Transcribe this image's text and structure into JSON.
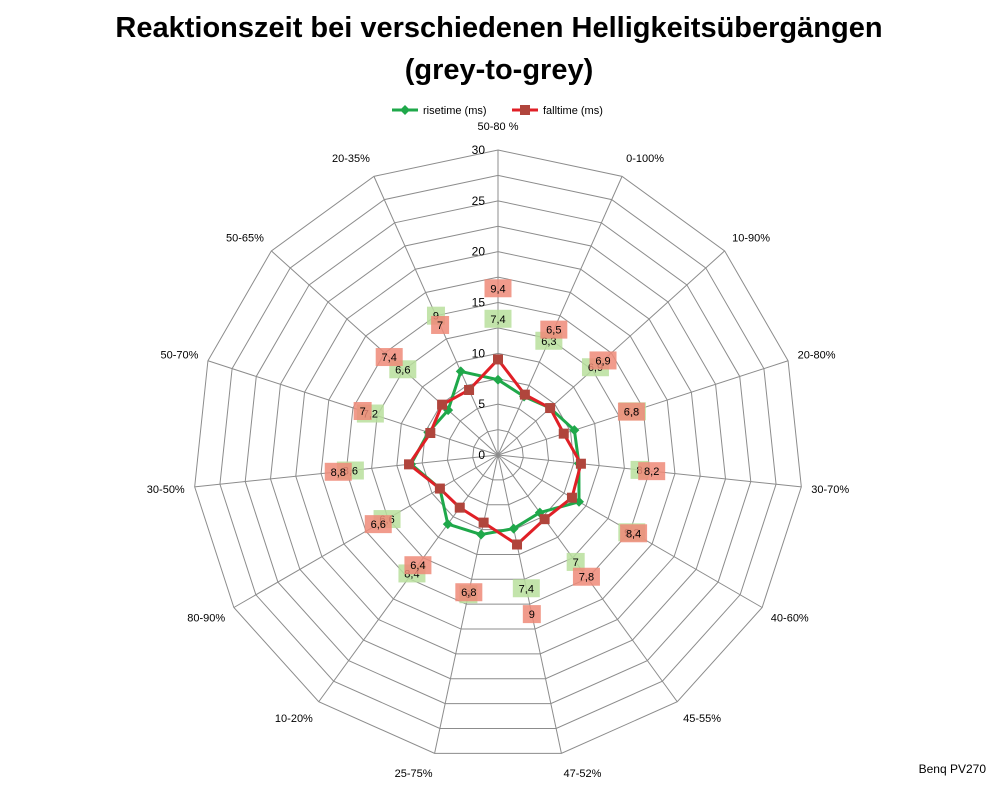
{
  "chart_data": {
    "type": "radar",
    "title": "Reaktionszeit bei verschiedenen Helligkeitsübergängen",
    "subtitle": "(grey-to-grey)",
    "categories": [
      "50-80 %",
      "0-100%",
      "10-90%",
      "20-80%",
      "30-70%",
      "40-60%",
      "45-55%",
      "47-52%",
      "25-75%",
      "10-20%",
      "80-90%",
      "30-50%",
      "50-70%",
      "50-65%",
      "20-35%"
    ],
    "radial_ticks": [
      "0",
      "5",
      "10",
      "15",
      "20",
      "25",
      "30"
    ],
    "range": [
      0,
      30
    ],
    "legend_position": "top",
    "series": [
      {
        "name": "risetime (ms)",
        "color": "#1fa84a",
        "label_bg": "#b8df9c",
        "marker": "diamond",
        "values": [
          7.4,
          6.3,
          6.9,
          7.9,
          8.0,
          9.2,
          7.0,
          7.4,
          8.0,
          8.4,
          6.6,
          8.6,
          7.2,
          6.6,
          9.0
        ],
        "labels": [
          "7,4",
          "6,3",
          "6,9",
          "7,9",
          "8",
          "9,2",
          "7",
          "7,4",
          "8",
          "8,4",
          "6,6",
          "8,6",
          "7,2",
          "6,6",
          "9"
        ]
      },
      {
        "name": "falltime (ms)",
        "color": "#e01f26",
        "label_bg": "#ee8a78",
        "marker": "square",
        "values": [
          9.4,
          6.5,
          6.9,
          6.8,
          8.2,
          8.4,
          7.8,
          9.0,
          6.8,
          6.4,
          6.6,
          8.8,
          7.0,
          7.4,
          7.0
        ],
        "labels": [
          "9,4",
          "6,5",
          "6,9",
          "6,8",
          "8,2",
          "8,4",
          "7,8",
          "9",
          "6,8",
          "6,4",
          "6,6",
          "8,8",
          "7",
          "7,4",
          "7"
        ]
      }
    ]
  },
  "credit": "Benq PV270"
}
